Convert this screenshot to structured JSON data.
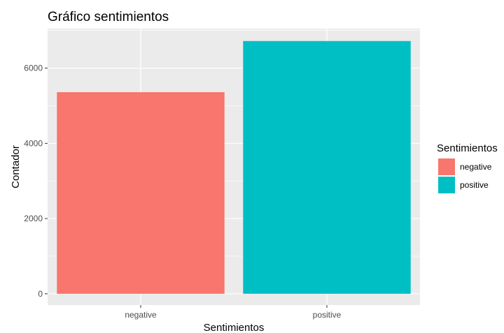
{
  "chart_data": {
    "type": "bar",
    "title": "Gráfico sentimientos",
    "xlabel": "Sentimientos",
    "ylabel": "Contador",
    "categories": [
      "negative",
      "positive"
    ],
    "values": [
      5360,
      6720
    ],
    "ylim": [
      -300,
      7050
    ],
    "yticks": [
      0,
      2000,
      4000,
      6000
    ],
    "ytick_labels": [
      "0",
      "2000",
      "4000",
      "6000"
    ],
    "grid": true,
    "legend": {
      "title": "Sentimientos",
      "position": "right",
      "entries": [
        {
          "label": "negative",
          "color": "#F8766D"
        },
        {
          "label": "positive",
          "color": "#00BFC4"
        }
      ]
    },
    "colors": [
      "#F8766D",
      "#00BFC4"
    ],
    "panel_background": "#EBEBEB"
  }
}
